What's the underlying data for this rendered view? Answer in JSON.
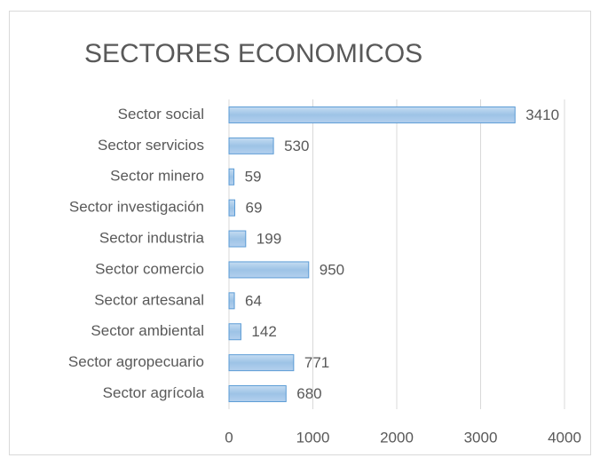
{
  "chart_data": {
    "type": "bar",
    "orientation": "horizontal",
    "title": "SECTORES ECONOMICOS",
    "categories": [
      "Sector social",
      "Sector servicios",
      "Sector minero",
      "Sector investigación",
      "Sector industria",
      "Sector comercio",
      "Sector artesanal",
      "Sector ambiental",
      "Sector agropecuario",
      "Sector agrícola"
    ],
    "values": [
      3410,
      530,
      59,
      69,
      199,
      950,
      64,
      142,
      771,
      680
    ],
    "color": "#9dc3e6",
    "xlim": [
      0,
      4000
    ],
    "xticks": [
      0,
      1000,
      2000,
      3000,
      4000
    ],
    "grid": true
  }
}
